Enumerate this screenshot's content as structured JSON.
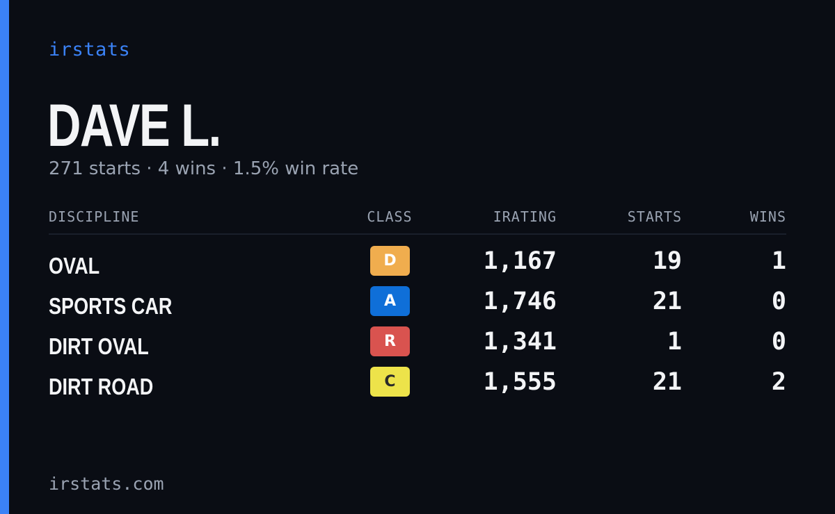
{
  "brand": {
    "label": "irstats"
  },
  "driver": {
    "name": "DAVE L.",
    "summary": "271 starts · 4 wins · 1.5% win rate"
  },
  "table": {
    "headers": {
      "discipline": "DISCIPLINE",
      "class": "CLASS",
      "irating": "IRATING",
      "starts": "STARTS",
      "wins": "WINS"
    },
    "rows": [
      {
        "discipline": "OVAL",
        "class": "D",
        "class_bg": "#f0ad4e",
        "class_fg": "#ffffff",
        "irating": "1,167",
        "starts": "19",
        "wins": "1"
      },
      {
        "discipline": "SPORTS CAR",
        "class": "A",
        "class_bg": "#0f6fd8",
        "class_fg": "#ffffff",
        "irating": "1,746",
        "starts": "21",
        "wins": "0"
      },
      {
        "discipline": "DIRT OVAL",
        "class": "R",
        "class_bg": "#d9534f",
        "class_fg": "#ffffff",
        "irating": "1,341",
        "starts": "1",
        "wins": "0"
      },
      {
        "discipline": "DIRT ROAD",
        "class": "C",
        "class_bg": "#ede34a",
        "class_fg": "#2a2a2a",
        "irating": "1,555",
        "starts": "21",
        "wins": "2"
      }
    ]
  },
  "footer": {
    "url": "irstats.com"
  },
  "colors": {
    "background": "#0a0d14",
    "accent": "#3b82f6",
    "text": "#f3f4f6",
    "muted": "#9aa3b2"
  }
}
